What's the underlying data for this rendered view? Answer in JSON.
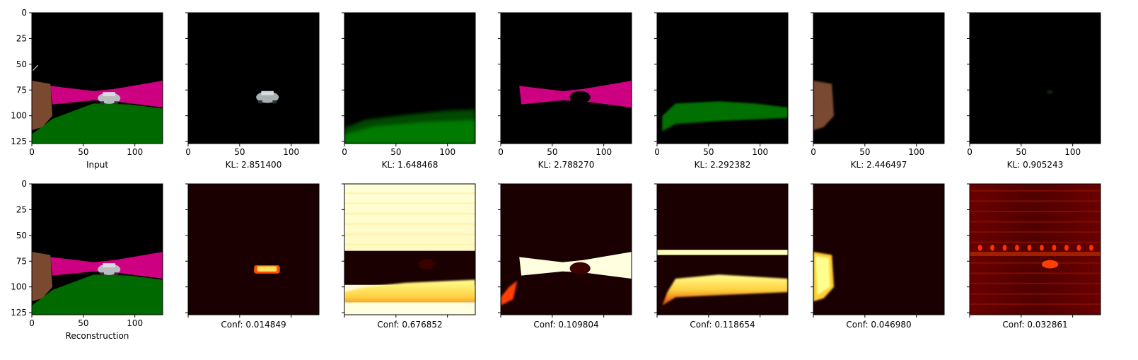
{
  "figure": {
    "rows": 2,
    "cols": 7
  },
  "chart_data": {
    "type": "image-grid",
    "x_range": [
      0,
      127
    ],
    "y_range": [
      0,
      127
    ],
    "x_ticks": [
      0,
      50,
      100
    ],
    "y_ticks": [
      0,
      25,
      50,
      75,
      100,
      125
    ],
    "top_row": [
      {
        "label": "Input",
        "kind": "input-scene"
      },
      {
        "label": "KL: 2.851400",
        "kl": 2.8514,
        "kind": "slot-car"
      },
      {
        "label": "KL: 1.648468",
        "kl": 1.648468,
        "kind": "slot-ground"
      },
      {
        "label": "KL: 2.788270",
        "kl": 2.78827,
        "kind": "slot-magenta"
      },
      {
        "label": "KL: 2.292382",
        "kl": 2.292382,
        "kind": "slot-green"
      },
      {
        "label": "KL: 2.446497",
        "kl": 2.446497,
        "kind": "slot-wall"
      },
      {
        "label": "KL: 0.905243",
        "kl": 0.905243,
        "kind": "slot-empty"
      }
    ],
    "bottom_row": [
      {
        "label": "Reconstruction",
        "kind": "reconstruction"
      },
      {
        "label": "Conf: 0.014849",
        "conf": 0.014849,
        "kind": "mask-car"
      },
      {
        "label": "Conf: 0.676852",
        "conf": 0.676852,
        "kind": "mask-ground"
      },
      {
        "label": "Conf: 0.109804",
        "conf": 0.109804,
        "kind": "mask-magenta"
      },
      {
        "label": "Conf: 0.118654",
        "conf": 0.118654,
        "kind": "mask-green"
      },
      {
        "label": "Conf: 0.046980",
        "conf": 0.04698,
        "kind": "mask-wall"
      },
      {
        "label": "Conf: 0.032861",
        "conf": 0.032861,
        "kind": "mask-noise"
      }
    ],
    "colors": {
      "background": "#000000",
      "magenta_band": "#cc0080",
      "green_ground": "#006a00",
      "brown_wall": "#7a4a30",
      "car_body": "#b8bcc0",
      "heat_low": "#1a0000",
      "heat_mid": "#d83000",
      "heat_high": "#ffffe0"
    }
  }
}
